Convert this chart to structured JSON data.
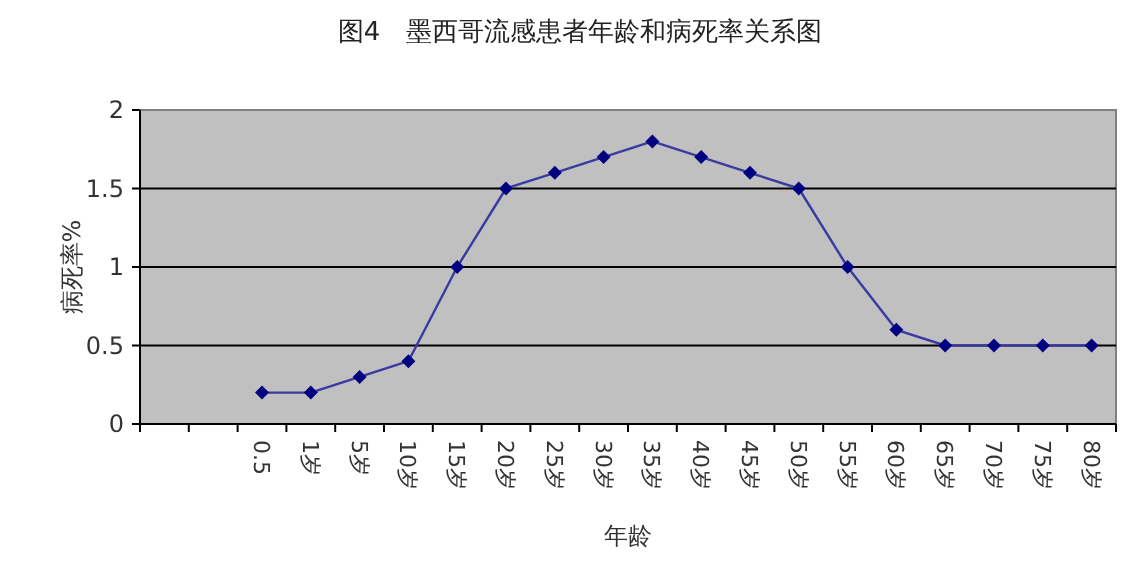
{
  "chart_data": {
    "type": "line",
    "title": "图4　墨西哥流感患者年龄和病死率关系图",
    "xlabel": "年龄",
    "ylabel": "病死率%",
    "categories": [
      null,
      null,
      "0.5",
      "1岁",
      "5岁",
      "10岁",
      "15岁",
      "20岁",
      "25岁",
      "30岁",
      "35岁",
      "40岁",
      "45岁",
      "50岁",
      "55岁",
      "60岁",
      "65岁",
      "70岁",
      "75岁",
      "80岁"
    ],
    "series": [
      {
        "color": "#000080",
        "values": [
          null,
          null,
          0.2,
          0.2,
          0.3,
          0.4,
          1.0,
          1.5,
          1.6,
          1.7,
          1.8,
          1.7,
          1.6,
          1.5,
          1.0,
          0.6,
          0.5,
          0.5,
          0.5,
          0.5
        ]
      }
    ],
    "ylim": [
      0,
      2
    ],
    "yticks": [
      0,
      0.5,
      1,
      1.5,
      2
    ],
    "grid": "y",
    "marker": "diamond",
    "line_style": "solid"
  }
}
